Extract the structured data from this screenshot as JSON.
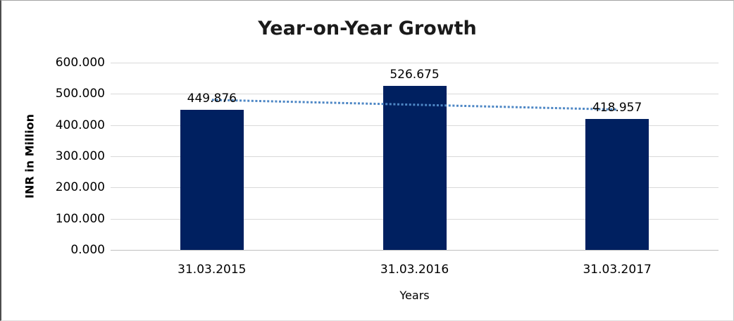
{
  "chart_data": {
    "type": "bar",
    "title": "Year-on-Year Growth",
    "xlabel": "Years",
    "ylabel": "INR in Million",
    "categories": [
      "31.03.2015",
      "31.03.2016",
      "31.03.2017"
    ],
    "values": [
      449.876,
      526.675,
      418.957
    ],
    "data_labels": [
      "449.876",
      "526.675",
      "418.957"
    ],
    "ylim": [
      0,
      600
    ],
    "ytick_labels_top_to_bottom": [
      "600.000",
      "500.000",
      "400.000",
      "300.000",
      "200.000",
      "100.000",
      "0.000"
    ],
    "grid": true,
    "legend": false,
    "trendline": {
      "type": "linear",
      "style": "dotted"
    },
    "colors": {
      "bar": "#002060",
      "trendline": "#4e87c5",
      "gridline": "#d9d9d9",
      "axis_line": "#bfbfbf",
      "title_text": "#1a1a1a",
      "label_text": "#000000",
      "background": "#ffffff"
    }
  }
}
